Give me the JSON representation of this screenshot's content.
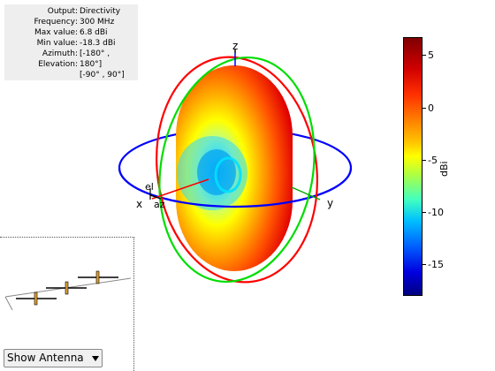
{
  "info": {
    "rows": [
      {
        "key": "Output",
        "value": "Directivity"
      },
      {
        "key": "Frequency",
        "value": "300 MHz"
      },
      {
        "key": "Max value",
        "value": "6.8 dBi"
      },
      {
        "key": "Min value",
        "value": "-18.3 dBi"
      },
      {
        "key": "Azimuth",
        "value": "[-180° ,"
      },
      {
        "key": "Elevation",
        "value": "180°]"
      }
    ],
    "extra": "[-90° , 90°]"
  },
  "axes": {
    "z": "z",
    "y": "y",
    "x": "x",
    "el": "el",
    "az": "az"
  },
  "colorbar": {
    "ticks": [
      "5",
      "0",
      "-5",
      "-10",
      "-15"
    ],
    "unit": "dBi"
  },
  "controls": {
    "antenna_select": "Show Antenna"
  },
  "colors": {
    "azimuth_circle": "#0000ff",
    "elevation_circle_1": "#ff0000",
    "elevation_circle_2": "#00dd00"
  }
}
